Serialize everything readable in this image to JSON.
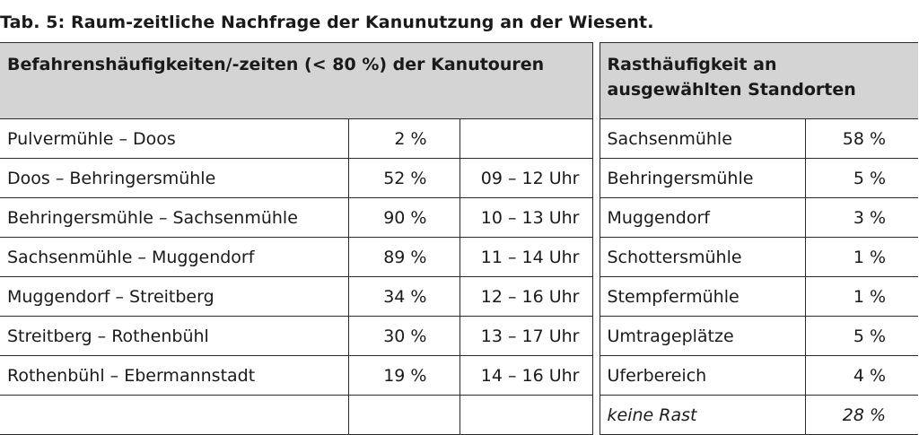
{
  "caption": "Tab. 5: Raum-zeitliche Nachfrage der Kanunutzung an der Wiesent.",
  "header": {
    "left": "Befahrenshäufigkeiten/-zeiten (< 80 %) der Kanutouren",
    "right": "Rasthäufigkeit an ausgewählten Standorten"
  },
  "rows": [
    {
      "route": "Pulvermühle – Doos",
      "freq": "2 %",
      "time": "",
      "place": "Sachsenmühle",
      "rest": "58 %"
    },
    {
      "route": "Doos – Behringersmühle",
      "freq": "52 %",
      "time": "09 – 12 Uhr",
      "place": "Behringersmühle",
      "rest": "5 %"
    },
    {
      "route": "Behringersmühle – Sachsenmühle",
      "freq": "90 %",
      "time": "10 – 13 Uhr",
      "place": "Muggendorf",
      "rest": "3 %"
    },
    {
      "route": "Sachsenmühle – Muggendorf",
      "freq": "89 %",
      "time": "11 – 14 Uhr",
      "place": "Schottersmühle",
      "rest": "1 %"
    },
    {
      "route": "Muggendorf – Streitberg",
      "freq": "34 %",
      "time": "12 – 16 Uhr",
      "place": "Stempfermühle",
      "rest": "1 %"
    },
    {
      "route": "Streitberg – Rothenbühl",
      "freq": "30 %",
      "time": "13 – 17 Uhr",
      "place": "Umtrageplätze",
      "rest": "5 %"
    },
    {
      "route": "Rothenbühl – Ebermannstadt",
      "freq": "19 %",
      "time": "14 – 16 Uhr",
      "place": "Uferbereich",
      "rest": "4 %"
    },
    {
      "route": "",
      "freq": "",
      "time": "",
      "place": "keine Rast",
      "rest": "28 %"
    }
  ]
}
